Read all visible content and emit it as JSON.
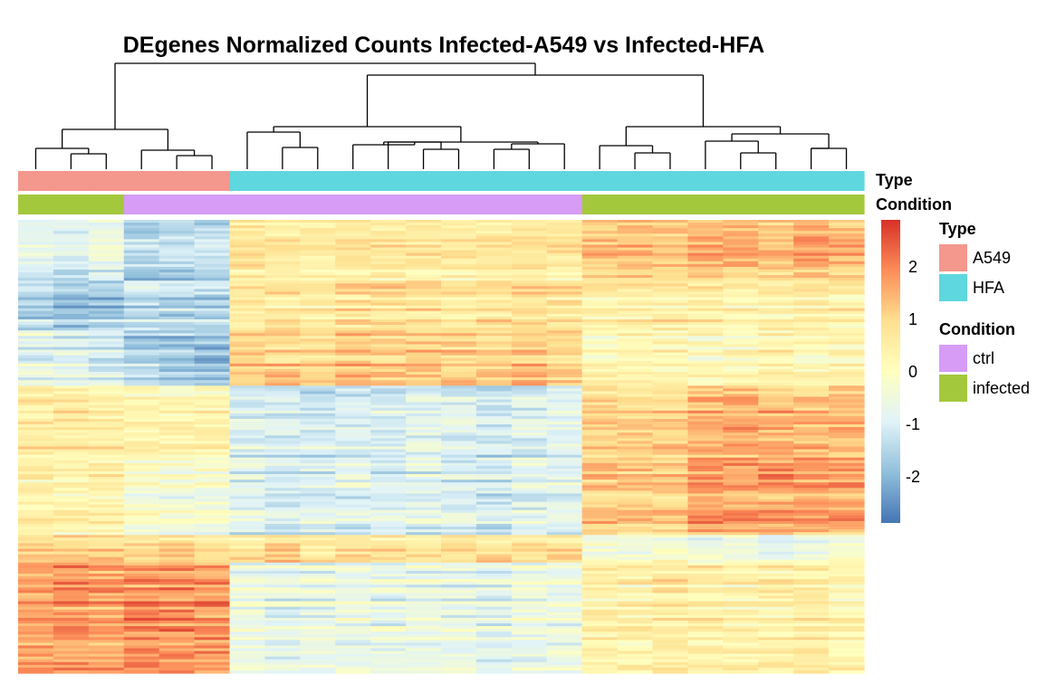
{
  "chart_data": {
    "type": "heatmap",
    "title": "DEgenes Normalized Counts Infected-A549 vs Infected-HFA",
    "columns": 24,
    "column_annotations": {
      "Type": [
        "A549",
        "A549",
        "A549",
        "A549",
        "A549",
        "A549",
        "HFA",
        "HFA",
        "HFA",
        "HFA",
        "HFA",
        "HFA",
        "HFA",
        "HFA",
        "HFA",
        "HFA",
        "HFA",
        "HFA",
        "HFA",
        "HFA",
        "HFA",
        "HFA",
        "HFA",
        "HFA"
      ],
      "Condition": [
        "infected",
        "infected",
        "infected",
        "ctrl",
        "ctrl",
        "ctrl",
        "ctrl",
        "ctrl",
        "ctrl",
        "ctrl",
        "ctrl",
        "ctrl",
        "ctrl",
        "ctrl",
        "ctrl",
        "ctrl",
        "infected",
        "infected",
        "infected",
        "infected",
        "infected",
        "infected",
        "infected",
        "infected"
      ]
    },
    "row_blocks": [
      {
        "rows": 22,
        "mean": [
          -0.9,
          -1.0,
          -0.8,
          -1.6,
          -1.5,
          -1.5,
          0.5,
          0.4,
          0.4,
          0.6,
          0.5,
          0.5,
          0.5,
          0.5,
          0.6,
          0.5,
          1.0,
          1.1,
          1.0,
          1.2,
          1.2,
          1.1,
          1.4,
          1.2
        ]
      },
      {
        "rows": 18,
        "mean": [
          -1.5,
          -1.7,
          -1.6,
          -1.3,
          -1.4,
          -1.4,
          0.6,
          0.7,
          0.6,
          0.8,
          0.8,
          0.7,
          0.7,
          0.7,
          0.8,
          0.7,
          0.4,
          0.5,
          0.5,
          0.4,
          0.3,
          0.4,
          0.5,
          0.4
        ]
      },
      {
        "rows": 20,
        "mean": [
          -0.7,
          -0.8,
          -0.9,
          -1.5,
          -1.6,
          -1.7,
          1.0,
          1.1,
          1.0,
          1.2,
          1.2,
          1.1,
          1.1,
          1.1,
          1.2,
          1.1,
          0.2,
          0.3,
          0.3,
          0.1,
          0.2,
          0.3,
          0.2,
          0.3
        ]
      },
      {
        "rows": 26,
        "mean": [
          0.6,
          0.6,
          0.5,
          0.3,
          0.2,
          0.3,
          -0.9,
          -1.0,
          -1.1,
          -0.9,
          -1.0,
          -0.8,
          -0.9,
          -1.1,
          -0.9,
          -0.8,
          1.0,
          1.0,
          1.0,
          1.4,
          1.5,
          1.4,
          1.3,
          1.4
        ]
      },
      {
        "rows": 28,
        "mean": [
          0.3,
          0.2,
          0.3,
          -0.3,
          -0.4,
          -0.3,
          -0.9,
          -1.1,
          -1.0,
          -0.9,
          -1.0,
          -0.9,
          -1.0,
          -1.1,
          -0.9,
          -0.9,
          1.1,
          1.2,
          1.1,
          1.6,
          1.5,
          1.6,
          1.5,
          1.5
        ]
      },
      {
        "rows": 10,
        "mean": [
          0.9,
          1.0,
          0.8,
          0.7,
          0.8,
          0.7,
          0.6,
          0.9,
          0.5,
          0.7,
          0.6,
          0.5,
          0.6,
          0.6,
          0.5,
          0.6,
          -0.4,
          -0.5,
          -0.3,
          -0.7,
          -0.6,
          -0.8,
          -0.6,
          -0.5
        ]
      },
      {
        "rows": 40,
        "mean": [
          1.6,
          1.7,
          1.6,
          1.8,
          1.8,
          1.7,
          -0.6,
          -0.8,
          -0.7,
          -0.6,
          -0.7,
          -0.6,
          -0.7,
          -0.8,
          -0.6,
          -0.6,
          0.4,
          0.3,
          0.5,
          0.4,
          0.3,
          0.4,
          0.5,
          0.3
        ]
      }
    ],
    "color_scale": {
      "min": -2.8,
      "max": 2.8,
      "colors": [
        "#4575b4",
        "#91bfdb",
        "#e0f3f8",
        "#ffffbf",
        "#fee090",
        "#fc8d59",
        "#d73027"
      ],
      "ticks": [
        "2",
        "1",
        "0",
        "-1",
        "-2"
      ]
    },
    "legend": {
      "Type": {
        "title": "Type",
        "items": [
          {
            "label": "A549",
            "color": "#f4978c"
          },
          {
            "label": "HFA",
            "color": "#5fd7df"
          }
        ]
      },
      "Condition": {
        "title": "Condition",
        "items": [
          {
            "label": "ctrl",
            "color": "#d69cf6"
          },
          {
            "label": "infected",
            "color": "#a4c83c"
          }
        ]
      }
    },
    "annotation_labels": {
      "type": "Type",
      "condition": "Condition"
    }
  }
}
